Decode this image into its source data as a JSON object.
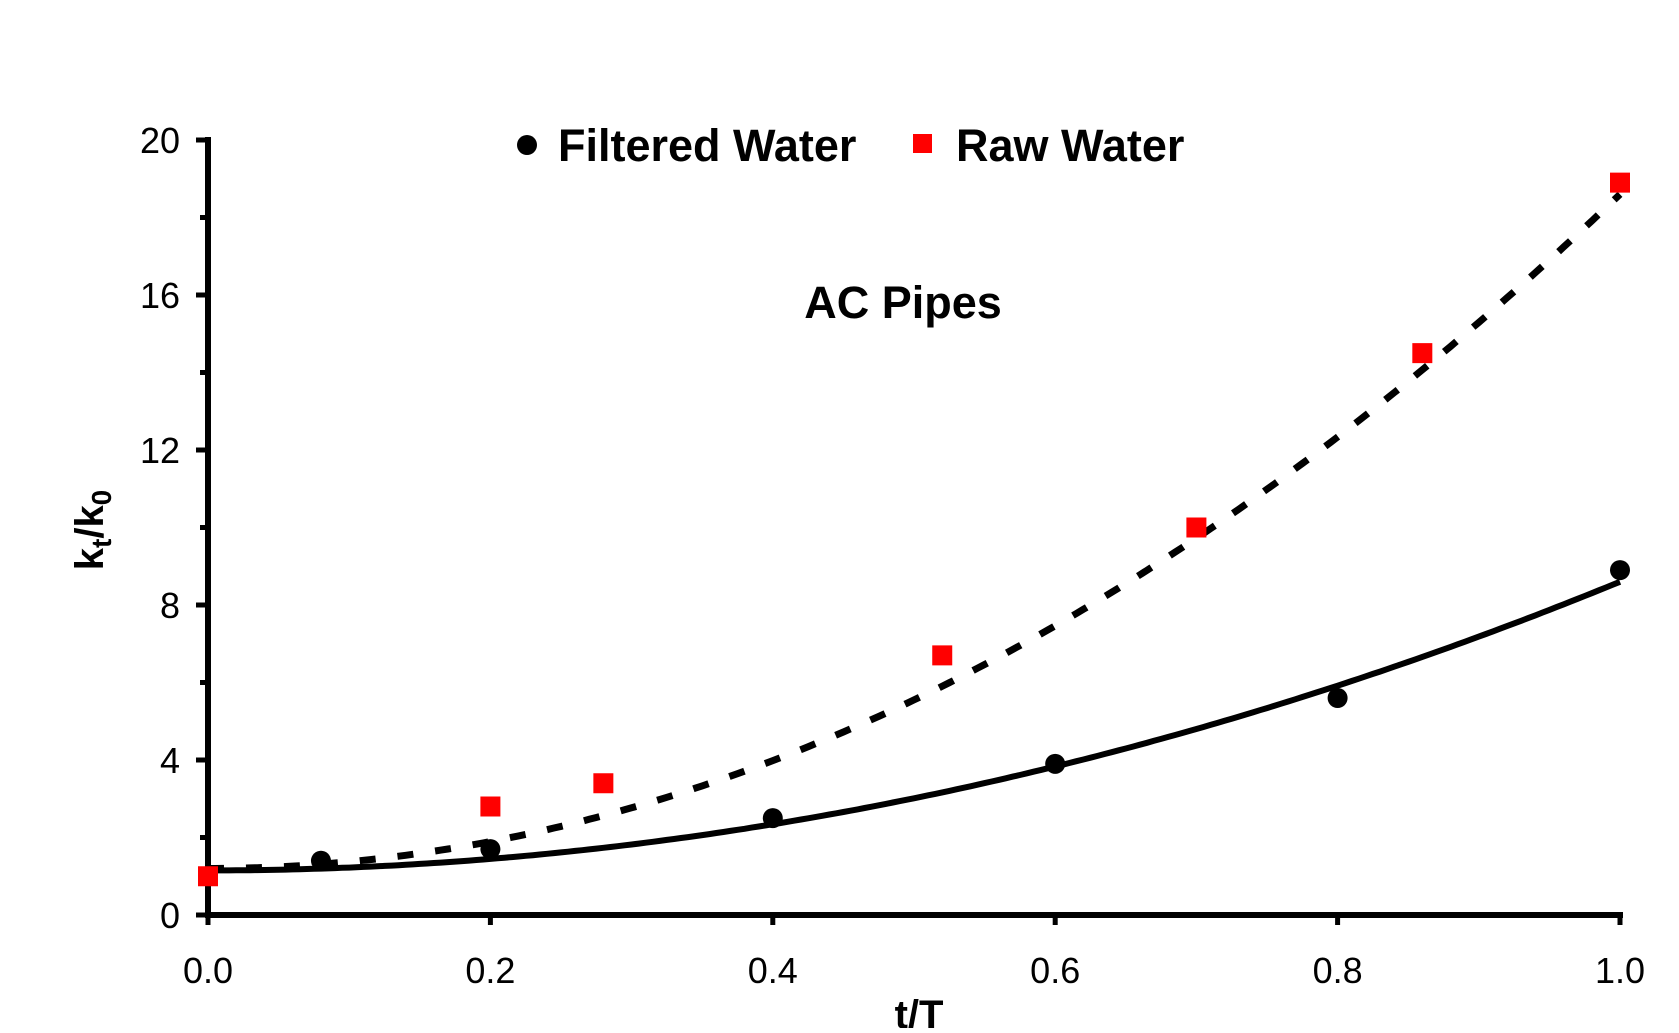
{
  "chart_data": {
    "type": "scatter",
    "title": "",
    "annotation": "AC Pipes",
    "xlabel": "t/T",
    "ylabel": {
      "base": "k",
      "sub1": "t",
      "mid": "/k",
      "sub2": "0"
    },
    "xlim": [
      0,
      1.0
    ],
    "ylim": [
      0,
      20
    ],
    "x_ticks": [
      0.0,
      0.2,
      0.4,
      0.6,
      0.8,
      1.0
    ],
    "x_tick_labels": [
      "0.0",
      "0.2",
      "0.4",
      "0.6",
      "0.8",
      "1.0"
    ],
    "y_ticks": [
      0,
      4,
      8,
      12,
      16,
      20
    ],
    "y_tick_labels": [
      "0",
      "4",
      "8",
      "12",
      "16",
      "20"
    ],
    "grid": false,
    "legend_position": "top",
    "series": [
      {
        "name": "Filtered Water",
        "marker": "circle",
        "color": "#000000",
        "points": [
          {
            "x": 0.08,
            "y": 1.4
          },
          {
            "x": 0.2,
            "y": 1.7
          },
          {
            "x": 0.4,
            "y": 2.5
          },
          {
            "x": 0.6,
            "y": 3.9
          },
          {
            "x": 0.8,
            "y": 5.6
          },
          {
            "x": 1.0,
            "y": 8.9
          }
        ],
        "trendline": {
          "style": "solid",
          "color": "#000000",
          "coefficients": [
            1.15,
            0,
            7.45
          ]
        }
      },
      {
        "name": "Raw Water",
        "marker": "square",
        "color": "#ff0000",
        "points": [
          {
            "x": 0.0,
            "y": 1.0
          },
          {
            "x": 0.2,
            "y": 2.8
          },
          {
            "x": 0.28,
            "y": 3.4
          },
          {
            "x": 0.52,
            "y": 6.7
          },
          {
            "x": 0.7,
            "y": 10.0
          },
          {
            "x": 0.86,
            "y": 14.5
          },
          {
            "x": 1.0,
            "y": 18.9
          }
        ],
        "trendline": {
          "style": "dashed",
          "color": "#000000",
          "coefficients": [
            1.2,
            0,
            17.4
          ]
        }
      }
    ]
  }
}
